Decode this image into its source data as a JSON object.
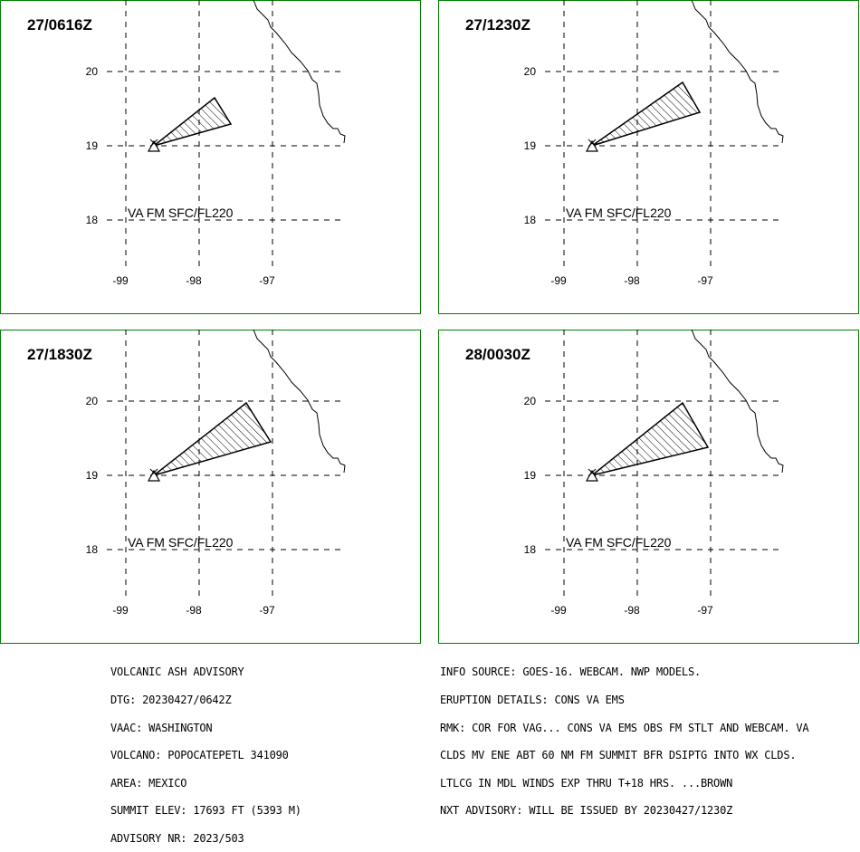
{
  "panels": [
    {
      "time": "27/0616Z",
      "label": "VA FM SFC/FL220"
    },
    {
      "time": "27/1230Z",
      "label": "VA FM SFC/FL220"
    },
    {
      "time": "27/1830Z",
      "label": "VA FM SFC/FL220"
    },
    {
      "time": "28/0030Z",
      "label": "VA FM SFC/FL220"
    }
  ],
  "axes": {
    "lat_labels": [
      "20",
      "19",
      "18"
    ],
    "lon_labels": [
      "-99",
      "-98",
      "-97"
    ]
  },
  "advisory_left": [
    "VOLCANIC ASH ADVISORY",
    "DTG: 20230427/0642Z",
    "VAAC: WASHINGTON",
    "VOLCANO: POPOCATEPETL 341090",
    "AREA: MEXICO",
    "SUMMIT ELEV: 17693 FT (5393 M)",
    "ADVISORY NR: 2023/503"
  ],
  "advisory_right": [
    "INFO SOURCE: GOES-16. WEBCAM. NWP MODELS.",
    "ERUPTION DETAILS: CONS VA EMS",
    "RMK: COR FOR VAG... CONS VA EMS OBS FM STLT AND WEBCAM. VA",
    "CLDS MV ENE ABT 60 NM FM SUMMIT BFR DSIPTG INTO WX CLDS.",
    "LTLCG IN MDL WINDS EXP THRU T+18 HRS. ...BROWN",
    "NXT ADVISORY: WILL BE ISSUED BY 20230427/1230Z"
  ],
  "colors": {
    "frame": "#008000",
    "lines": "#000000"
  }
}
